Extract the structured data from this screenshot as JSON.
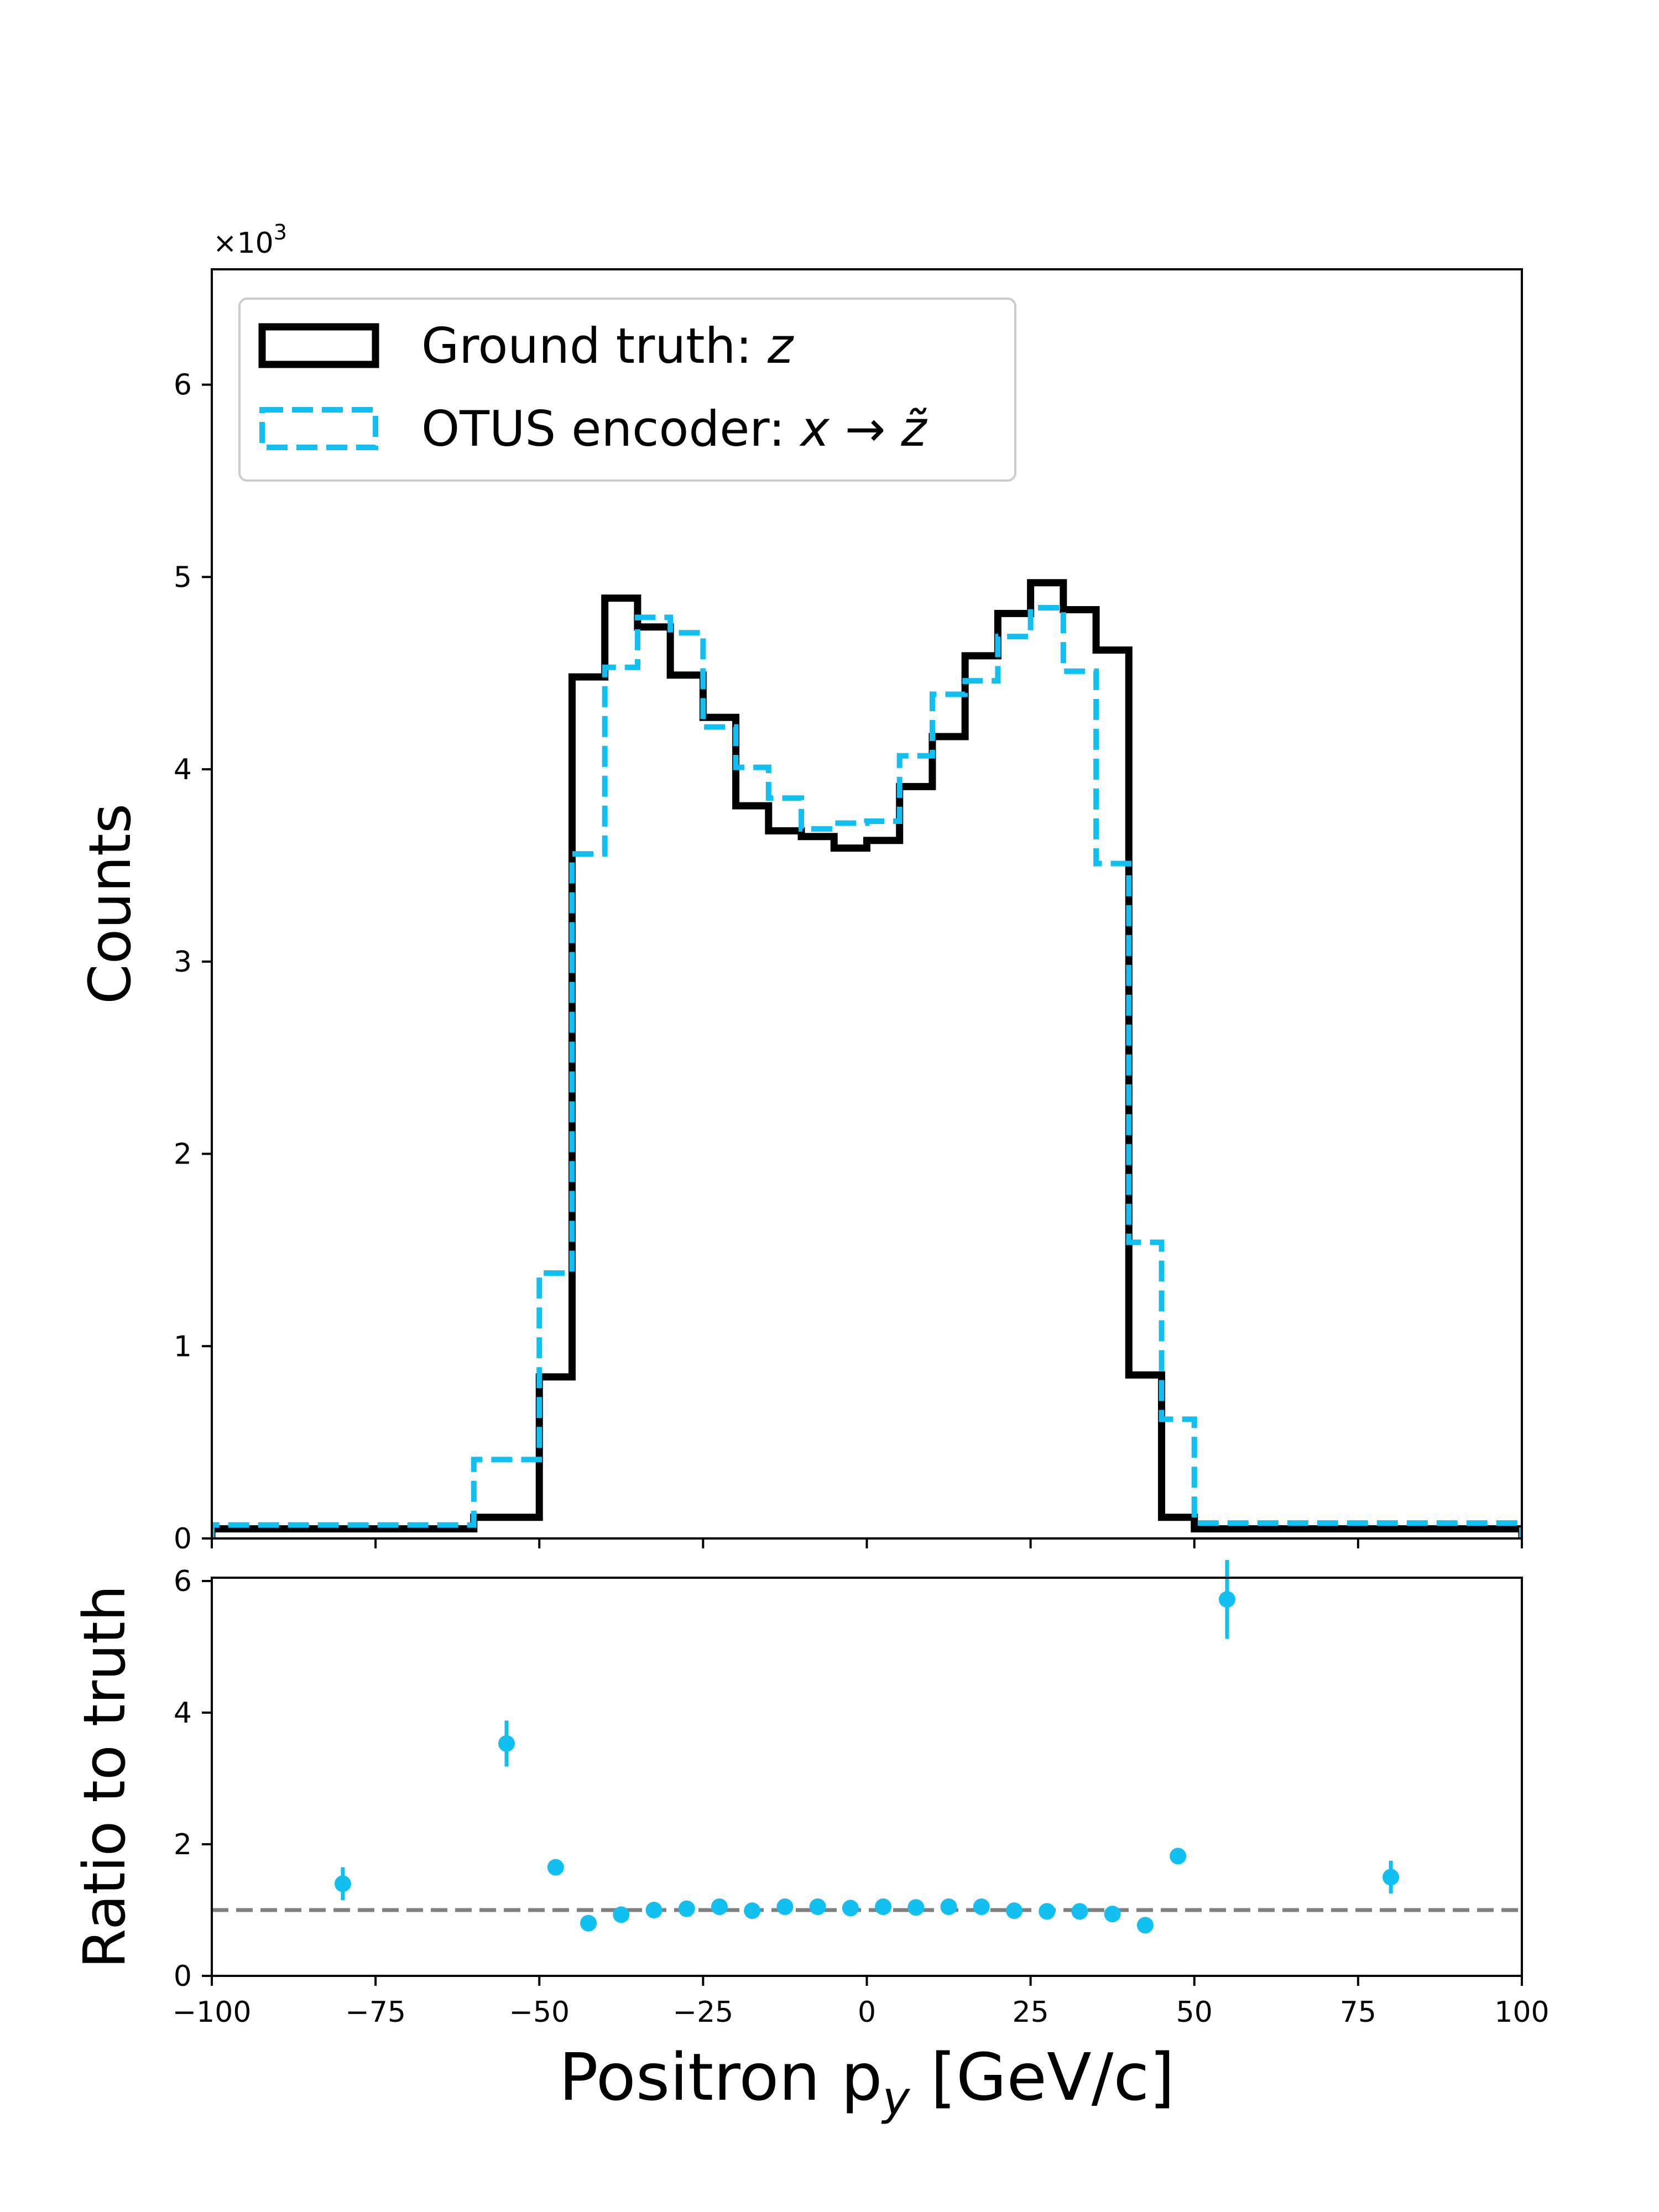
{
  "chart_data": {
    "type": "histogram",
    "top_panel": {
      "ylabel": "Counts",
      "scale_label": "×10",
      "scale_exponent": "3",
      "ylim": [
        0,
        6.6
      ],
      "yticks": [
        0,
        1,
        2,
        3,
        4,
        5,
        6
      ],
      "legend_placement": "upper-left"
    },
    "bottom_panel": {
      "ylabel": "Ratio to truth",
      "ylim": [
        0,
        6.05
      ],
      "yticks": [
        0,
        2,
        4,
        6
      ],
      "reference_line": 1
    },
    "xlabel": "Positron p",
    "xlabel_sub": "y",
    "xlabel_unit": " [GeV/c]",
    "xlim": [
      -100,
      100
    ],
    "xticks": [
      -100,
      -75,
      -50,
      -25,
      0,
      25,
      50,
      75,
      100
    ],
    "xtick_labels": [
      "−100",
      "−75",
      "−50",
      "−25",
      "0",
      "25",
      "50",
      "75",
      "100"
    ],
    "bin_edges": [
      -100,
      -60,
      -50,
      -45,
      -40,
      -35,
      -30,
      -25,
      -20,
      -15,
      -10,
      -5,
      0,
      5,
      10,
      15,
      20,
      25,
      30,
      35,
      40,
      45,
      50,
      60,
      100
    ],
    "series": [
      {
        "name": "Ground truth: ",
        "name_math": "z",
        "style": "solid",
        "color": "#000000",
        "values": [
          0.05,
          0.11,
          0.84,
          4.48,
          4.89,
          4.74,
          4.49,
          4.27,
          3.81,
          3.68,
          3.65,
          3.59,
          3.63,
          3.91,
          4.17,
          4.59,
          4.81,
          4.97,
          4.83,
          4.62,
          0.85,
          0.11,
          0.05,
          0.05
        ]
      },
      {
        "name": "OTUS encoder: ",
        "name_math": "x → z̃",
        "style": "dashed",
        "color": "#11bff1",
        "values": [
          0.07,
          0.41,
          1.38,
          3.56,
          4.53,
          4.79,
          4.71,
          4.22,
          4.01,
          3.85,
          3.69,
          3.72,
          3.73,
          4.07,
          4.39,
          4.46,
          4.69,
          4.84,
          4.51,
          3.51,
          1.54,
          0.62,
          0.08,
          0.08
        ]
      }
    ],
    "ratio_points": {
      "color": "#11bff1",
      "x": [
        -80,
        -55,
        -47.5,
        -42.5,
        -37.5,
        -32.5,
        -27.5,
        -22.5,
        -17.5,
        -12.5,
        -7.5,
        -2.5,
        2.5,
        7.5,
        12.5,
        17.5,
        22.5,
        27.5,
        32.5,
        37.5,
        42.5,
        47.5,
        55,
        80
      ],
      "y": [
        1.4,
        3.53,
        1.65,
        0.8,
        0.93,
        1.0,
        1.02,
        1.05,
        0.99,
        1.05,
        1.05,
        1.03,
        1.05,
        1.04,
        1.05,
        1.05,
        0.99,
        0.98,
        0.98,
        0.94,
        0.77,
        1.82,
        5.72,
        1.5
      ],
      "err": [
        0.25,
        0.35,
        0.08,
        0.04,
        0.04,
        0.04,
        0.04,
        0.04,
        0.04,
        0.04,
        0.04,
        0.04,
        0.04,
        0.04,
        0.04,
        0.04,
        0.04,
        0.04,
        0.04,
        0.04,
        0.04,
        0.08,
        0.6,
        0.25
      ]
    }
  }
}
